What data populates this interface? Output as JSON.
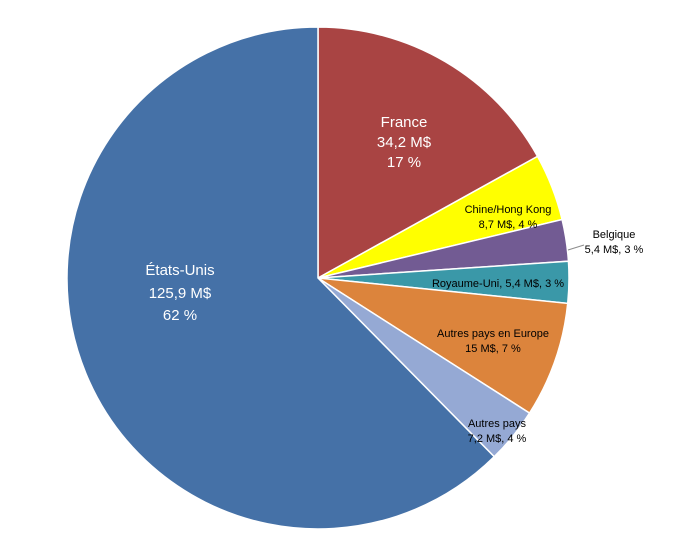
{
  "chart_data": {
    "type": "pie",
    "unit": "M$",
    "start": "top, clockwise",
    "slices": [
      {
        "label": "France",
        "value": 34.2,
        "value_text": "34,2 M$",
        "pct_text": "17 %",
        "color": "#A94443"
      },
      {
        "label": "Chine/Hong Kong",
        "value": 8.7,
        "value_text": "8,7 M$, 4 %",
        "pct_text": "",
        "color": "#FFFF00"
      },
      {
        "label": "Belgique",
        "value": 5.4,
        "value_text": "5,4 M$, 3 %",
        "pct_text": "",
        "color": "#725B93"
      },
      {
        "label": "Royaume-Uni",
        "value": 5.4,
        "value_text": "Royaume-Uni, 5,4 M$, 3 %",
        "pct_text": "",
        "color": "#3A98A8"
      },
      {
        "label": "Autres pays en Europe",
        "value": 15.0,
        "value_text": "15 M$, 7 %",
        "pct_text": "",
        "color": "#DC843C"
      },
      {
        "label": "Autres pays",
        "value": 7.2,
        "value_text": "7,2 M$, 4 %",
        "pct_text": "",
        "color": "#95A9D4"
      },
      {
        "label": "États-Unis",
        "value": 125.9,
        "value_text": "125,9 M$",
        "pct_text": "62 %",
        "color": "#4571A7"
      }
    ]
  }
}
